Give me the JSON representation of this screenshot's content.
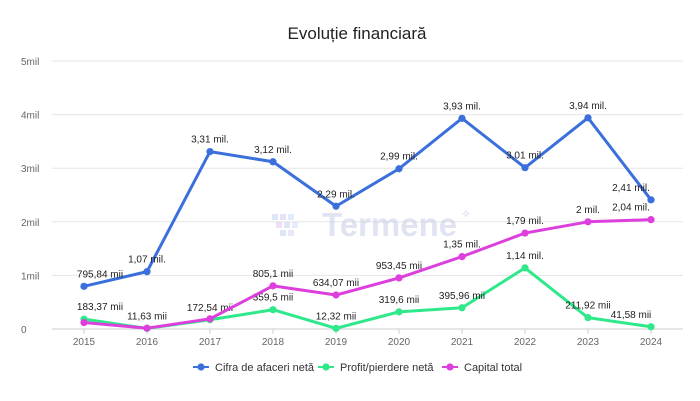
{
  "chart_data": {
    "type": "line",
    "title": "Evoluție financiară",
    "xlabel": "",
    "ylabel": "",
    "ylim": [
      0,
      5000000
    ],
    "grid": true,
    "legend_position": "bottom",
    "y_ticks": [
      {
        "value": 0,
        "label": "0"
      },
      {
        "value": 1000000,
        "label": "1mil"
      },
      {
        "value": 2000000,
        "label": "2mil"
      },
      {
        "value": 3000000,
        "label": "3mil"
      },
      {
        "value": 4000000,
        "label": "4mil"
      },
      {
        "value": 5000000,
        "label": "5mil"
      }
    ],
    "x": [
      "2015",
      "2016",
      "2017",
      "2018",
      "2019",
      "2020",
      "2021",
      "2022",
      "2023",
      "2024"
    ],
    "series": [
      {
        "name": "Cifra de afaceri netă",
        "color": "#3a6fdc",
        "values": [
          795840,
          1070000,
          3310000,
          3120000,
          2290000,
          2990000,
          3930000,
          3010000,
          3940000,
          2410000
        ],
        "labels": [
          "795,84 mii",
          "1,07 mil.",
          "3,31 mil.",
          "3,12 mil.",
          "2,29 mil.",
          "2,99 mil.",
          "3,93 mil.",
          "3,01 mil.",
          "3,94 mil.",
          "2,41 mil."
        ]
      },
      {
        "name": "Profit/pierdere netă",
        "color": "#2ee88a",
        "values": [
          183370,
          11630,
          172540,
          359500,
          12320,
          319600,
          395960,
          1140000,
          211920,
          41580
        ],
        "labels": [
          "183,37 mii",
          "11,63 mii",
          "172,54 mii",
          "359,5 mii",
          "12,32 mii",
          "319,6 mii",
          "395,96 mii",
          "1,14 mil.",
          "211,92 mii",
          "41,58 mii"
        ]
      },
      {
        "name": "Capital total",
        "color": "#dd3fdd",
        "values": [
          120000,
          15000,
          190000,
          805100,
          634070,
          953450,
          1350000,
          1790000,
          2000000,
          2040000
        ],
        "labels": [
          "",
          "",
          "",
          "805,1 mii",
          "634,07 mii",
          "953,45 mii",
          "1,35 mil.",
          "1,79 mil.",
          "2 mil.",
          "2,04 mil."
        ]
      }
    ]
  },
  "watermark": {
    "text": "Termene"
  }
}
